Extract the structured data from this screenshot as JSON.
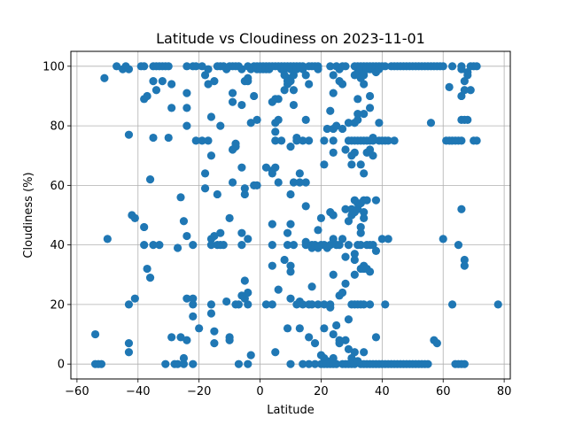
{
  "chart_data": {
    "type": "scatter",
    "title": "Latitude vs Cloudiness on 2023-11-01",
    "xlabel": "Latitude",
    "ylabel": "Cloudiness (%)",
    "xlim": [
      -62,
      82
    ],
    "ylim": [
      -5,
      105
    ],
    "xticks": [
      -60,
      -40,
      -20,
      0,
      20,
      40,
      60,
      80
    ],
    "yticks": [
      0,
      20,
      40,
      60,
      80,
      100
    ],
    "grid": true,
    "marker_color": "#1f77b4",
    "points": [
      [
        -54,
        10
      ],
      [
        -54,
        0
      ],
      [
        -53,
        0
      ],
      [
        -52,
        0
      ],
      [
        -51,
        96
      ],
      [
        -50,
        42
      ],
      [
        -47,
        100
      ],
      [
        -45,
        99
      ],
      [
        -44,
        100
      ],
      [
        -43,
        99
      ],
      [
        -43,
        77
      ],
      [
        -43,
        20
      ],
      [
        -43,
        7
      ],
      [
        -43,
        4
      ],
      [
        -42,
        50
      ],
      [
        -41,
        49
      ],
      [
        -41,
        22
      ],
      [
        -39,
        100
      ],
      [
        -38,
        89
      ],
      [
        -38,
        100
      ],
      [
        -38,
        46
      ],
      [
        -38,
        40
      ],
      [
        -37,
        32
      ],
      [
        -37,
        90
      ],
      [
        -36,
        62
      ],
      [
        -36,
        29
      ],
      [
        -35,
        100
      ],
      [
        -35,
        95
      ],
      [
        -35,
        76
      ],
      [
        -35,
        40
      ],
      [
        -34,
        100
      ],
      [
        -34,
        92
      ],
      [
        -33,
        100
      ],
      [
        -33,
        40
      ],
      [
        -32,
        100
      ],
      [
        -32,
        95
      ],
      [
        -31,
        100
      ],
      [
        -31,
        0
      ],
      [
        -30,
        100
      ],
      [
        -30,
        76
      ],
      [
        -29,
        94
      ],
      [
        -29,
        86
      ],
      [
        -29,
        9
      ],
      [
        -28,
        0
      ],
      [
        -27,
        0
      ],
      [
        -27,
        39
      ],
      [
        -26,
        56
      ],
      [
        -26,
        9
      ],
      [
        -25,
        48
      ],
      [
        -25,
        2
      ],
      [
        -25,
        0
      ],
      [
        -24,
        100
      ],
      [
        -24,
        91
      ],
      [
        -24,
        86
      ],
      [
        -24,
        80
      ],
      [
        -24,
        43
      ],
      [
        -24,
        22
      ],
      [
        -24,
        8
      ],
      [
        -22,
        100
      ],
      [
        -22,
        40
      ],
      [
        -22,
        22
      ],
      [
        -22,
        20
      ],
      [
        -22,
        16
      ],
      [
        -22,
        0
      ],
      [
        -21,
        100
      ],
      [
        -21,
        75
      ],
      [
        -20,
        12
      ],
      [
        -19,
        100
      ],
      [
        -19,
        75
      ],
      [
        -18,
        59
      ],
      [
        -18,
        64
      ],
      [
        -18,
        97
      ],
      [
        -17,
        99
      ],
      [
        -17,
        94
      ],
      [
        -17,
        75
      ],
      [
        -16,
        83
      ],
      [
        -16,
        70
      ],
      [
        -16,
        42
      ],
      [
        -16,
        40
      ],
      [
        -16,
        20
      ],
      [
        -16,
        17
      ],
      [
        -15,
        95
      ],
      [
        -15,
        43
      ],
      [
        -15,
        11
      ],
      [
        -15,
        7
      ],
      [
        -14,
        100
      ],
      [
        -14,
        57
      ],
      [
        -14,
        40
      ],
      [
        -13,
        100
      ],
      [
        -13,
        80
      ],
      [
        -13,
        44
      ],
      [
        -13,
        40
      ],
      [
        -12,
        100
      ],
      [
        -12,
        40
      ],
      [
        -11,
        99
      ],
      [
        -11,
        21
      ],
      [
        -10,
        100
      ],
      [
        -10,
        49
      ],
      [
        -10,
        9
      ],
      [
        -10,
        8
      ],
      [
        -9,
        100
      ],
      [
        -9,
        91
      ],
      [
        -9,
        88
      ],
      [
        -9,
        72
      ],
      [
        -9,
        61
      ],
      [
        -8,
        100
      ],
      [
        -8,
        74
      ],
      [
        -8,
        73
      ],
      [
        -8,
        20
      ],
      [
        -7,
        100
      ],
      [
        -7,
        20
      ],
      [
        -7,
        0
      ],
      [
        -6,
        99
      ],
      [
        -6,
        87
      ],
      [
        -6,
        66
      ],
      [
        -6,
        44
      ],
      [
        -6,
        40
      ],
      [
        -6,
        23
      ],
      [
        -5,
        95
      ],
      [
        -5,
        59
      ],
      [
        -5,
        57
      ],
      [
        -5,
        28
      ],
      [
        -5,
        22
      ],
      [
        -4,
        100
      ],
      [
        -4,
        96
      ],
      [
        -4,
        95
      ],
      [
        -4,
        42
      ],
      [
        -4,
        24
      ],
      [
        -4,
        20
      ],
      [
        -4,
        0
      ],
      [
        -3,
        99
      ],
      [
        -3,
        81
      ],
      [
        -3,
        3
      ],
      [
        -2,
        100
      ],
      [
        -2,
        90
      ],
      [
        -2,
        60
      ],
      [
        -1,
        100
      ],
      [
        -1,
        99
      ],
      [
        -1,
        82
      ],
      [
        -1,
        60
      ],
      [
        0,
        100
      ],
      [
        0,
        99
      ],
      [
        1,
        100
      ],
      [
        1,
        99
      ],
      [
        2,
        100
      ],
      [
        2,
        99
      ],
      [
        2,
        66
      ],
      [
        2,
        20
      ],
      [
        3,
        100
      ],
      [
        3,
        99
      ],
      [
        4,
        100
      ],
      [
        4,
        88
      ],
      [
        4,
        65
      ],
      [
        4,
        64
      ],
      [
        4,
        47
      ],
      [
        4,
        40
      ],
      [
        4,
        33
      ],
      [
        4,
        20
      ],
      [
        5,
        100
      ],
      [
        5,
        89
      ],
      [
        5,
        81
      ],
      [
        5,
        78
      ],
      [
        5,
        75
      ],
      [
        5,
        66
      ],
      [
        5,
        4
      ],
      [
        6,
        100
      ],
      [
        6,
        89
      ],
      [
        6,
        82
      ],
      [
        6,
        61
      ],
      [
        6,
        25
      ],
      [
        7,
        100
      ],
      [
        7,
        99
      ],
      [
        7,
        75
      ],
      [
        8,
        100
      ],
      [
        8,
        99
      ],
      [
        8,
        97
      ],
      [
        8,
        92
      ],
      [
        8,
        35
      ],
      [
        9,
        100
      ],
      [
        9,
        96
      ],
      [
        9,
        95
      ],
      [
        9,
        94
      ],
      [
        9,
        44
      ],
      [
        9,
        40
      ],
      [
        9,
        12
      ],
      [
        10,
        100
      ],
      [
        10,
        99
      ],
      [
        10,
        95
      ],
      [
        10,
        73
      ],
      [
        10,
        57
      ],
      [
        10,
        47
      ],
      [
        10,
        33
      ],
      [
        10,
        31
      ],
      [
        10,
        22
      ],
      [
        10,
        0
      ],
      [
        11,
        100
      ],
      [
        11,
        99
      ],
      [
        11,
        97
      ],
      [
        11,
        92
      ],
      [
        11,
        87
      ],
      [
        11,
        61
      ],
      [
        11,
        40
      ],
      [
        12,
        100
      ],
      [
        12,
        99
      ],
      [
        12,
        76
      ],
      [
        12,
        75
      ],
      [
        12,
        20
      ],
      [
        13,
        100
      ],
      [
        13,
        64
      ],
      [
        13,
        61
      ],
      [
        13,
        21
      ],
      [
        13,
        12
      ],
      [
        14,
        100
      ],
      [
        14,
        99
      ],
      [
        14,
        75
      ],
      [
        14,
        20
      ],
      [
        14,
        0
      ],
      [
        15,
        97
      ],
      [
        15,
        82
      ],
      [
        15,
        61
      ],
      [
        15,
        53
      ],
      [
        15,
        41
      ],
      [
        15,
        40
      ],
      [
        16,
        100
      ],
      [
        16,
        94
      ],
      [
        16,
        75
      ],
      [
        16,
        20
      ],
      [
        16,
        9
      ],
      [
        16,
        0
      ],
      [
        17,
        100
      ],
      [
        17,
        40
      ],
      [
        17,
        39
      ],
      [
        17,
        26
      ],
      [
        17,
        20
      ],
      [
        18,
        100
      ],
      [
        18,
        40
      ],
      [
        18,
        7
      ],
      [
        18,
        0
      ],
      [
        19,
        100
      ],
      [
        19,
        99
      ],
      [
        19,
        45
      ],
      [
        19,
        39
      ],
      [
        19,
        20
      ],
      [
        20,
        49
      ],
      [
        20,
        40
      ],
      [
        20,
        3
      ],
      [
        20,
        0
      ],
      [
        21,
        75
      ],
      [
        21,
        67
      ],
      [
        21,
        40
      ],
      [
        21,
        20
      ],
      [
        21,
        12
      ],
      [
        21,
        2
      ],
      [
        21,
        0
      ],
      [
        22,
        79
      ],
      [
        22,
        39
      ],
      [
        22,
        1
      ],
      [
        22,
        0
      ],
      [
        23,
        100
      ],
      [
        23,
        85
      ],
      [
        23,
        51
      ],
      [
        23,
        40
      ],
      [
        23,
        20
      ],
      [
        23,
        19
      ],
      [
        23,
        0
      ],
      [
        24,
        97
      ],
      [
        24,
        91
      ],
      [
        24,
        79
      ],
      [
        24,
        75
      ],
      [
        24,
        71
      ],
      [
        24,
        50
      ],
      [
        24,
        42
      ],
      [
        24,
        30
      ],
      [
        24,
        10
      ],
      [
        24,
        2
      ],
      [
        24,
        0
      ],
      [
        25,
        100
      ],
      [
        25,
        80
      ],
      [
        25,
        40
      ],
      [
        25,
        13
      ],
      [
        25,
        0
      ],
      [
        26,
        99
      ],
      [
        26,
        95
      ],
      [
        26,
        40
      ],
      [
        26,
        23
      ],
      [
        26,
        8
      ],
      [
        26,
        7
      ],
      [
        27,
        100
      ],
      [
        27,
        94
      ],
      [
        27,
        79
      ],
      [
        27,
        42
      ],
      [
        27,
        24
      ],
      [
        27,
        0
      ],
      [
        28,
        100
      ],
      [
        28,
        72
      ],
      [
        28,
        52
      ],
      [
        28,
        36
      ],
      [
        28,
        27
      ],
      [
        28,
        8
      ],
      [
        28,
        0
      ],
      [
        29,
        81
      ],
      [
        29,
        75
      ],
      [
        29,
        48
      ],
      [
        29,
        40
      ],
      [
        29,
        15
      ],
      [
        29,
        5
      ],
      [
        29,
        0
      ],
      [
        30,
        75
      ],
      [
        30,
        70
      ],
      [
        30,
        67
      ],
      [
        30,
        52
      ],
      [
        30,
        50
      ],
      [
        30,
        20
      ],
      [
        30,
        2
      ],
      [
        30,
        0
      ],
      [
        31,
        100
      ],
      [
        31,
        97
      ],
      [
        31,
        81
      ],
      [
        31,
        75
      ],
      [
        31,
        71
      ],
      [
        31,
        55
      ],
      [
        31,
        51
      ],
      [
        31,
        37
      ],
      [
        31,
        35
      ],
      [
        31,
        30
      ],
      [
        31,
        20
      ],
      [
        31,
        4
      ],
      [
        31,
        0
      ],
      [
        32,
        100
      ],
      [
        32,
        98
      ],
      [
        32,
        89
      ],
      [
        32,
        84
      ],
      [
        32,
        82
      ],
      [
        32,
        75
      ],
      [
        32,
        54
      ],
      [
        32,
        52
      ],
      [
        32,
        40
      ],
      [
        32,
        20
      ],
      [
        32,
        1
      ],
      [
        33,
        100
      ],
      [
        33,
        99
      ],
      [
        33,
        96
      ],
      [
        33,
        75
      ],
      [
        33,
        67
      ],
      [
        33,
        54
      ],
      [
        33,
        46
      ],
      [
        33,
        44
      ],
      [
        33,
        40
      ],
      [
        33,
        32
      ],
      [
        33,
        20
      ],
      [
        33,
        0
      ],
      [
        34,
        100
      ],
      [
        34,
        97
      ],
      [
        34,
        94
      ],
      [
        34,
        84
      ],
      [
        34,
        75
      ],
      [
        34,
        64
      ],
      [
        34,
        55
      ],
      [
        34,
        51
      ],
      [
        34,
        49
      ],
      [
        34,
        33
      ],
      [
        34,
        32
      ],
      [
        34,
        20
      ],
      [
        34,
        4
      ],
      [
        34,
        0
      ],
      [
        35,
        100
      ],
      [
        35,
        99
      ],
      [
        35,
        75
      ],
      [
        35,
        71
      ],
      [
        35,
        55
      ],
      [
        35,
        40
      ],
      [
        35,
        32
      ],
      [
        35,
        0
      ],
      [
        36,
        100
      ],
      [
        36,
        99
      ],
      [
        36,
        90
      ],
      [
        36,
        86
      ],
      [
        36,
        75
      ],
      [
        36,
        72
      ],
      [
        36,
        40
      ],
      [
        36,
        31
      ],
      [
        36,
        20
      ],
      [
        36,
        0
      ],
      [
        37,
        100
      ],
      [
        37,
        99
      ],
      [
        37,
        76
      ],
      [
        37,
        75
      ],
      [
        37,
        70
      ],
      [
        37,
        40
      ],
      [
        37,
        0
      ],
      [
        38,
        100
      ],
      [
        38,
        99
      ],
      [
        38,
        98
      ],
      [
        38,
        55
      ],
      [
        38,
        38
      ],
      [
        38,
        9
      ],
      [
        38,
        0
      ],
      [
        39,
        100
      ],
      [
        39,
        99
      ],
      [
        39,
        81
      ],
      [
        39,
        75
      ],
      [
        39,
        0
      ],
      [
        40,
        100
      ],
      [
        40,
        75
      ],
      [
        40,
        42
      ],
      [
        40,
        0
      ],
      [
        41,
        100
      ],
      [
        41,
        75
      ],
      [
        41,
        20
      ],
      [
        41,
        0
      ],
      [
        42,
        75
      ],
      [
        42,
        42
      ],
      [
        42,
        0
      ],
      [
        43,
        100
      ],
      [
        43,
        0
      ],
      [
        44,
        100
      ],
      [
        44,
        75
      ],
      [
        44,
        0
      ],
      [
        45,
        100
      ],
      [
        45,
        0
      ],
      [
        46,
        100
      ],
      [
        46,
        0
      ],
      [
        47,
        100
      ],
      [
        47,
        0
      ],
      [
        48,
        100
      ],
      [
        48,
        0
      ],
      [
        49,
        100
      ],
      [
        49,
        0
      ],
      [
        50,
        100
      ],
      [
        50,
        0
      ],
      [
        51,
        100
      ],
      [
        51,
        0
      ],
      [
        52,
        100
      ],
      [
        52,
        0
      ],
      [
        53,
        100
      ],
      [
        53,
        0
      ],
      [
        54,
        100
      ],
      [
        54,
        0
      ],
      [
        55,
        100
      ],
      [
        55,
        0
      ],
      [
        56,
        100
      ],
      [
        56,
        81
      ],
      [
        57,
        100
      ],
      [
        57,
        8
      ],
      [
        58,
        100
      ],
      [
        58,
        7
      ],
      [
        59,
        100
      ],
      [
        60,
        42
      ],
      [
        60,
        100
      ],
      [
        61,
        75
      ],
      [
        62,
        93
      ],
      [
        62,
        75
      ],
      [
        63,
        100
      ],
      [
        63,
        75
      ],
      [
        63,
        20
      ],
      [
        64,
        75
      ],
      [
        64,
        0
      ],
      [
        65,
        75
      ],
      [
        65,
        40
      ],
      [
        65,
        0
      ],
      [
        66,
        100
      ],
      [
        66,
        99
      ],
      [
        66,
        90
      ],
      [
        66,
        82
      ],
      [
        66,
        75
      ],
      [
        66,
        52
      ],
      [
        66,
        0
      ],
      [
        67,
        95
      ],
      [
        67,
        92
      ],
      [
        67,
        82
      ],
      [
        67,
        35
      ],
      [
        67,
        33
      ],
      [
        67,
        0
      ],
      [
        68,
        98
      ],
      [
        68,
        97
      ],
      [
        68,
        82
      ],
      [
        69,
        100
      ],
      [
        69,
        92
      ],
      [
        70,
        75
      ],
      [
        70,
        100
      ],
      [
        71,
        100
      ],
      [
        71,
        75
      ],
      [
        78,
        20
      ]
    ]
  }
}
